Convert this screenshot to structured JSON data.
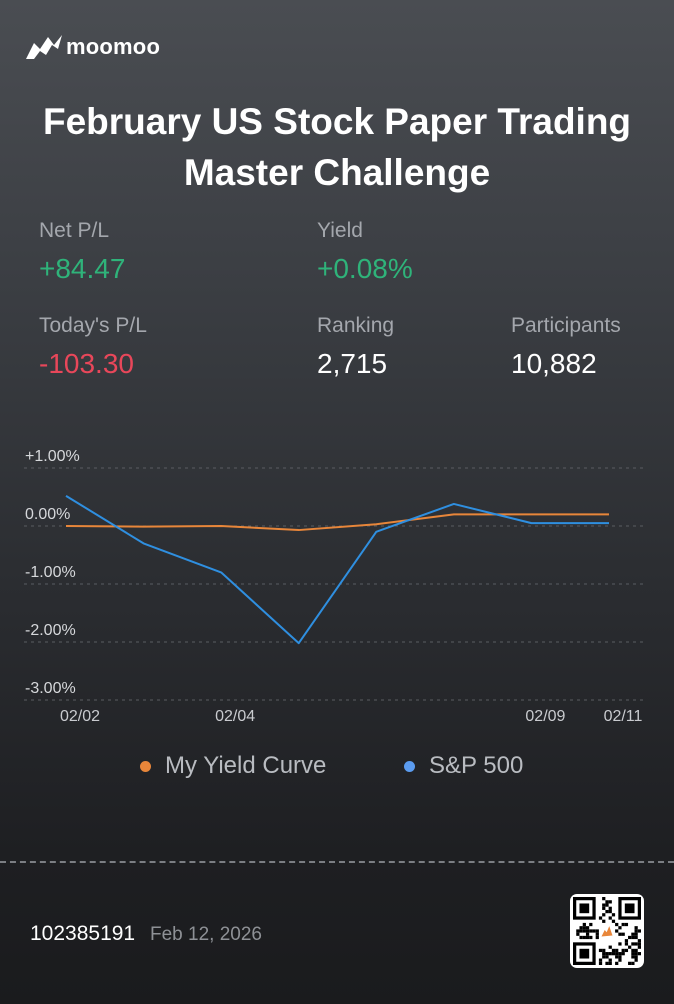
{
  "brand": {
    "name": "moomoo"
  },
  "title": {
    "line1": "February US Stock Paper Trading",
    "line2": "Master Challenge"
  },
  "stats": {
    "net_pl": {
      "label": "Net P/L",
      "value": "+84.47"
    },
    "yield": {
      "label": "Yield",
      "value": "+0.08%"
    },
    "todays_pl": {
      "label": "Today's P/L",
      "value": "-103.30"
    },
    "ranking": {
      "label": "Ranking",
      "value": "2,715"
    },
    "participants": {
      "label": "Participants",
      "value": "10,882"
    }
  },
  "colors": {
    "positive": "#2fb37a",
    "negative": "#e8475a",
    "my_yield": "#e8863a",
    "sp500": "#2f8fe0"
  },
  "chart_data": {
    "type": "line",
    "y_ticks": [
      "+1.00%",
      "0.00%",
      "-1.00%",
      "-2.00%",
      "-3.00%"
    ],
    "ylim": [
      -3,
      1
    ],
    "x_tick_labels": [
      "02/02",
      "02/04",
      "02/09",
      "02/11"
    ],
    "x": [
      0,
      1,
      2,
      3,
      4,
      5,
      6,
      7
    ],
    "x_label_index": [
      0,
      2,
      6,
      7
    ],
    "grid": true,
    "legend_position": "bottom",
    "series": [
      {
        "name": "My Yield Curve",
        "values": [
          0.0,
          -0.01,
          0.0,
          -0.07,
          0.03,
          0.2,
          0.2,
          0.2
        ]
      },
      {
        "name": "S&P 500",
        "values": [
          0.52,
          -0.3,
          -0.8,
          -2.02,
          -0.1,
          0.38,
          0.05,
          0.05
        ]
      }
    ]
  },
  "footer": {
    "id": "102385191",
    "date": "Feb 12, 2026"
  }
}
